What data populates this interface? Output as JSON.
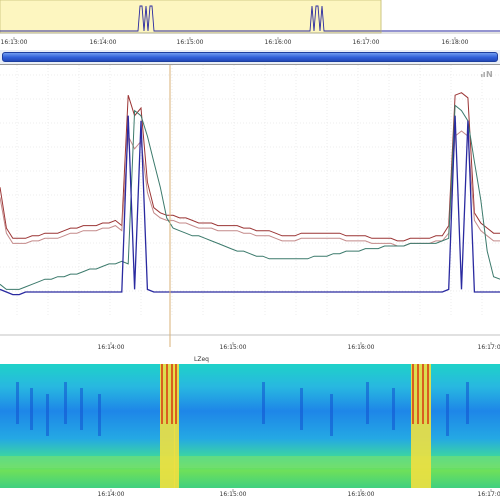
{
  "overview": {
    "tick_labels": [
      "16:13:00",
      "16:14:00",
      "16:15:00",
      "16:16:00",
      "16:17:00",
      "16:18:00"
    ],
    "selection_color": "#fdf6c0"
  },
  "chart_data": [
    {
      "type": "line",
      "x_unit": "clock time",
      "tick_labels": [
        "16:14:00",
        "16:15:00",
        "16:16:00",
        "16:17:00"
      ],
      "bottom_label": "LZeq",
      "cursor": "16:14:30",
      "grid": true,
      "legend": "none",
      "series": [
        {
          "color": "#9b3535",
          "values": [
            60,
            44,
            40,
            40,
            40,
            41,
            41,
            42,
            42,
            42,
            43,
            44,
            44,
            45,
            45,
            45,
            46,
            46,
            47,
            45,
            96,
            88,
            91,
            62,
            52,
            50,
            49,
            49,
            48,
            48,
            47,
            46,
            46,
            46,
            45,
            45,
            45,
            45,
            44,
            44,
            43,
            43,
            43,
            42,
            41,
            41,
            41,
            42,
            42,
            42,
            42,
            42,
            42,
            42,
            41,
            41,
            41,
            41,
            40,
            40,
            40,
            40,
            39,
            39,
            40,
            40,
            40,
            40,
            41,
            41,
            45,
            96,
            97,
            95,
            50,
            46,
            44,
            42,
            42
          ]
        },
        {
          "color": "#c48a8a",
          "values": [
            56,
            42,
            38,
            38,
            38,
            39,
            39,
            40,
            40,
            40,
            41,
            42,
            42,
            43,
            43,
            43,
            44,
            44,
            45,
            43,
            80,
            75,
            78,
            58,
            50,
            48,
            47,
            47,
            46,
            46,
            45,
            44,
            44,
            44,
            43,
            43,
            43,
            43,
            42,
            42,
            41,
            41,
            41,
            40,
            39,
            39,
            39,
            40,
            40,
            40,
            40,
            40,
            40,
            40,
            39,
            39,
            39,
            39,
            38,
            38,
            38,
            38,
            37,
            37,
            38,
            38,
            38,
            38,
            39,
            39,
            42,
            80,
            82,
            80,
            47,
            43,
            41,
            39,
            39
          ]
        },
        {
          "color": "#3c7a6c",
          "values": [
            22,
            20,
            20,
            20,
            21,
            22,
            23,
            24,
            24,
            25,
            25,
            26,
            26,
            27,
            28,
            28,
            29,
            30,
            30,
            31,
            30,
            90,
            88,
            80,
            70,
            60,
            48,
            44,
            43,
            42,
            41,
            41,
            40,
            39,
            38,
            37,
            36,
            35,
            35,
            34,
            33,
            33,
            32,
            32,
            32,
            32,
            32,
            32,
            32,
            33,
            33,
            33,
            34,
            34,
            35,
            35,
            35,
            36,
            36,
            36,
            37,
            37,
            37,
            37,
            38,
            38,
            38,
            38,
            38,
            39,
            40,
            92,
            90,
            86,
            70,
            55,
            35,
            25,
            24
          ]
        },
        {
          "color": "#2a2aa0",
          "values": [
            20,
            19,
            18,
            18,
            19,
            19,
            19,
            19,
            19,
            19,
            19,
            19,
            19,
            19,
            19,
            19,
            19,
            19,
            19,
            19,
            88,
            20,
            86,
            20,
            19,
            19,
            19,
            19,
            19,
            19,
            19,
            19,
            19,
            19,
            19,
            19,
            19,
            19,
            19,
            19,
            19,
            19,
            19,
            19,
            19,
            19,
            19,
            19,
            19,
            19,
            19,
            19,
            19,
            19,
            19,
            19,
            19,
            19,
            19,
            19,
            19,
            19,
            19,
            19,
            19,
            19,
            19,
            19,
            19,
            19,
            20,
            88,
            20,
            86,
            19,
            19,
            19,
            19,
            19
          ]
        }
      ]
    },
    {
      "type": "heatmap",
      "label": "spectrogram",
      "tick_labels": [
        "16:14:00",
        "16:15:00",
        "16:16:00",
        "16:17:00"
      ]
    }
  ]
}
